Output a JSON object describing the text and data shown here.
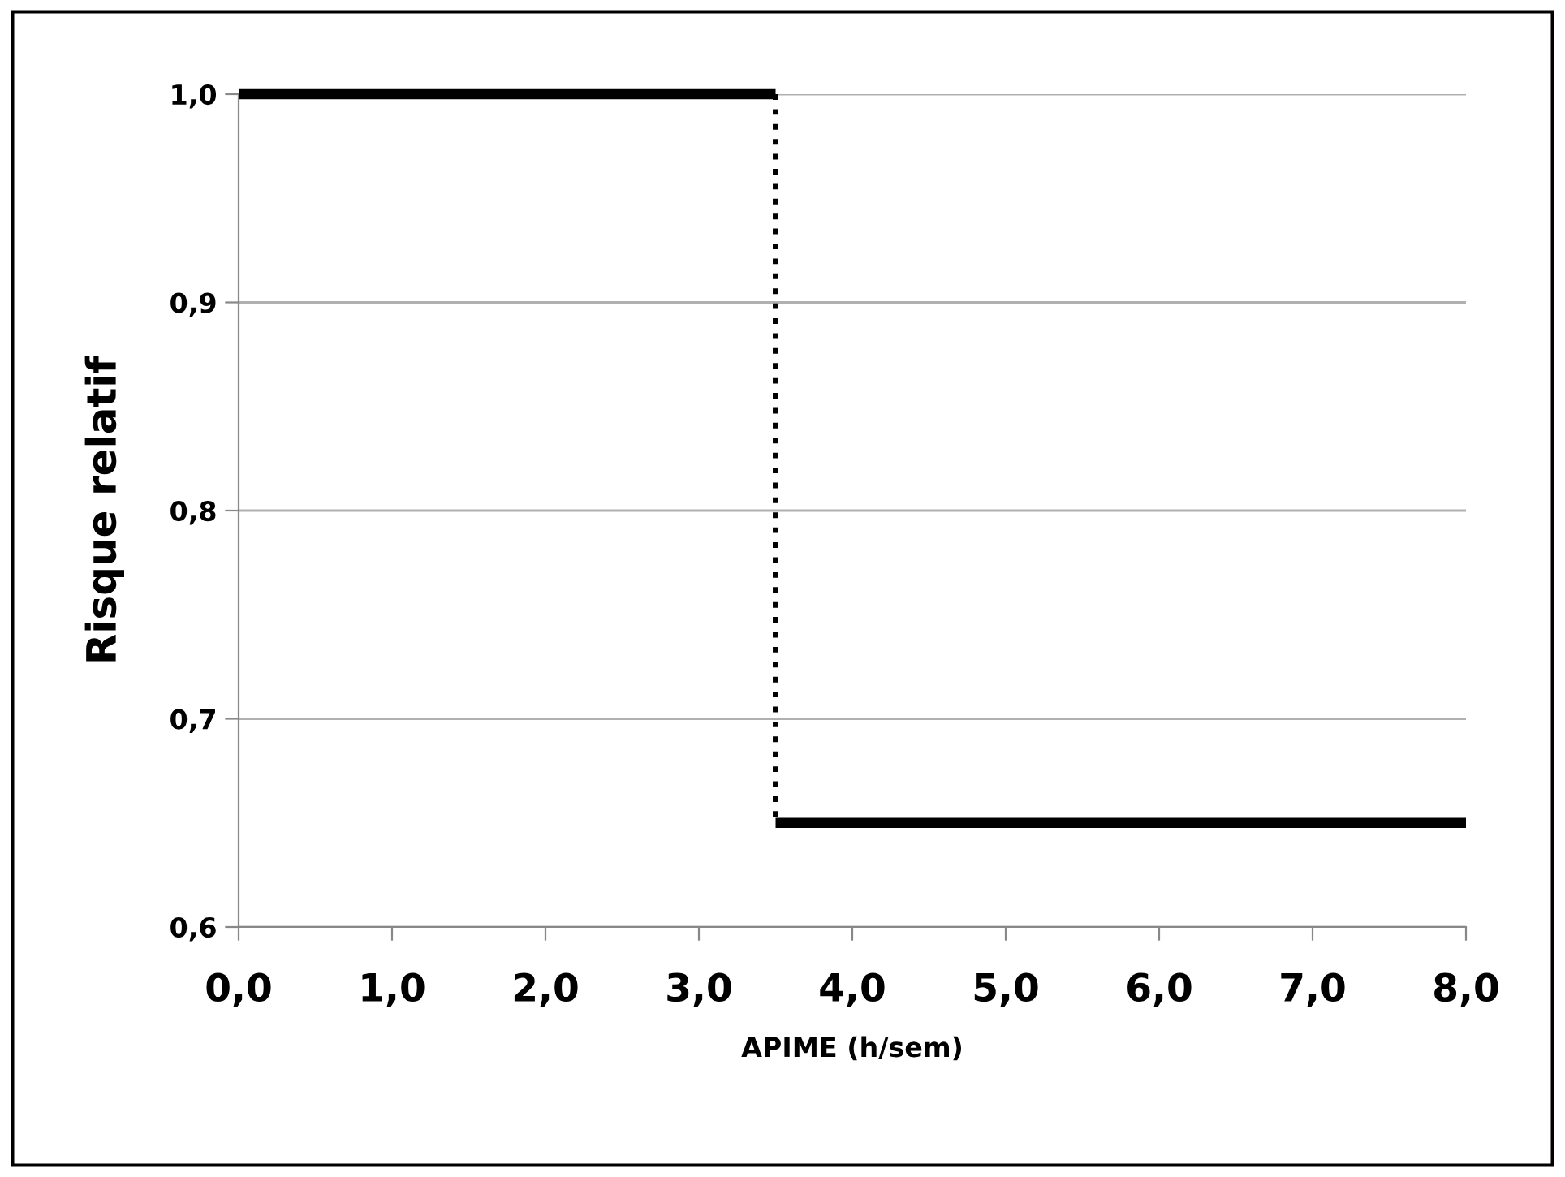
{
  "chart_data": {
    "type": "line",
    "xlabel": "APIME (h/sem)",
    "ylabel": "Risque relatif",
    "series": [
      {
        "color": "#000000",
        "x": [
          0,
          3.5
        ],
        "values": [
          1.0,
          1.0
        ],
        "line_style": "solid"
      },
      {
        "color": "#000000",
        "x": [
          3.5,
          3.5
        ],
        "values": [
          1.0,
          0.65
        ],
        "line_style": "dotted"
      },
      {
        "color": "#000000",
        "x": [
          3.5,
          8
        ],
        "values": [
          0.65,
          0.65
        ],
        "line_style": "solid"
      }
    ],
    "xlim": [
      0,
      8
    ],
    "xticks": [
      {
        "value": 0,
        "label": "0,0"
      },
      {
        "value": 1,
        "label": "1,0"
      },
      {
        "value": 2,
        "label": "2,0"
      },
      {
        "value": 3,
        "label": "3,0"
      },
      {
        "value": 4,
        "label": "4,0"
      },
      {
        "value": 5,
        "label": "5,0"
      },
      {
        "value": 6,
        "label": "6,0"
      },
      {
        "value": 7,
        "label": "7,0"
      },
      {
        "value": 8,
        "label": "8,0"
      }
    ],
    "ylim": [
      0.6,
      1.0
    ],
    "yticks": [
      {
        "value": 0.6,
        "label": "0,6"
      },
      {
        "value": 0.7,
        "label": "0,7"
      },
      {
        "value": 0.8,
        "label": "0,8"
      },
      {
        "value": 0.9,
        "label": "0,9"
      },
      {
        "value": 1.0,
        "label": "1,0"
      }
    ],
    "grid": "y",
    "marker": "none"
  }
}
